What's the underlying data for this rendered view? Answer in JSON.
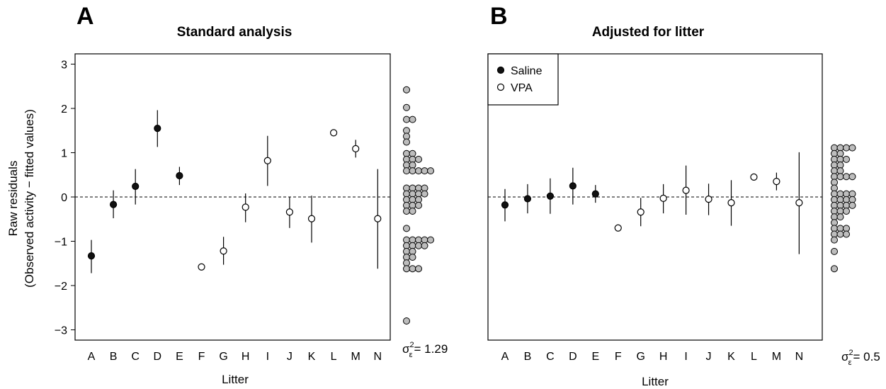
{
  "chart_data": [
    {
      "type": "scatter",
      "panel": "A",
      "title": "Standard analysis",
      "xlabel": "Litter",
      "ylabel_line1": "Raw residuals",
      "ylabel_line2": "(Observed activity − fitted values)",
      "categories": [
        "A",
        "B",
        "C",
        "D",
        "E",
        "F",
        "G",
        "H",
        "I",
        "J",
        "K",
        "L",
        "M",
        "N"
      ],
      "ylim": [
        -3.2,
        3.0
      ],
      "yticks": [
        -3,
        -2,
        -1,
        0,
        1,
        2,
        3
      ],
      "ytick_labels": [
        "−3",
        "−2",
        "−1",
        "0",
        "1",
        "2",
        "3"
      ],
      "reference_line": 0,
      "series": [
        {
          "name": "Saline",
          "fill": "#111111",
          "points": [
            {
              "x": "A",
              "y": -1.33,
              "lo": -1.72,
              "hi": -0.97
            },
            {
              "x": "B",
              "y": -0.17,
              "lo": -0.48,
              "hi": 0.15
            },
            {
              "x": "C",
              "y": 0.24,
              "lo": -0.17,
              "hi": 0.63
            },
            {
              "x": "D",
              "y": 1.55,
              "lo": 1.13,
              "hi": 1.96
            },
            {
              "x": "E",
              "y": 0.48,
              "lo": 0.27,
              "hi": 0.68
            }
          ]
        },
        {
          "name": "VPA",
          "fill": "#ffffff",
          "points": [
            {
              "x": "F",
              "y": -1.58,
              "lo": -1.58,
              "hi": -1.58
            },
            {
              "x": "G",
              "y": -1.22,
              "lo": -1.53,
              "hi": -0.9
            },
            {
              "x": "H",
              "y": -0.23,
              "lo": -0.57,
              "hi": 0.08
            },
            {
              "x": "I",
              "y": 0.82,
              "lo": 0.25,
              "hi": 1.38
            },
            {
              "x": "J",
              "y": -0.34,
              "lo": -0.7,
              "hi": 0.0
            },
            {
              "x": "K",
              "y": -0.49,
              "lo": -1.03,
              "hi": 0.03
            },
            {
              "x": "L",
              "y": 1.45,
              "lo": 1.45,
              "hi": 1.45
            },
            {
              "x": "M",
              "y": 1.09,
              "lo": 0.89,
              "hi": 1.29
            },
            {
              "x": "N",
              "y": -0.49,
              "lo": -1.62,
              "hi": 0.63
            }
          ]
        }
      ],
      "dotplot_counts_by_level": [
        {
          "y": 2.42,
          "n": 1
        },
        {
          "y": 2.02,
          "n": 1
        },
        {
          "y": 1.75,
          "n": 2
        },
        {
          "y": 1.5,
          "n": 1
        },
        {
          "y": 1.37,
          "n": 1
        },
        {
          "y": 1.24,
          "n": 1
        },
        {
          "y": 0.98,
          "n": 2
        },
        {
          "y": 0.85,
          "n": 3
        },
        {
          "y": 0.72,
          "n": 2
        },
        {
          "y": 0.59,
          "n": 5
        },
        {
          "y": 0.2,
          "n": 4
        },
        {
          "y": 0.07,
          "n": 4
        },
        {
          "y": -0.06,
          "n": 3
        },
        {
          "y": -0.19,
          "n": 3
        },
        {
          "y": -0.32,
          "n": 2
        },
        {
          "y": -0.71,
          "n": 1
        },
        {
          "y": -0.97,
          "n": 5
        },
        {
          "y": -1.1,
          "n": 4
        },
        {
          "y": -1.23,
          "n": 2
        },
        {
          "y": -1.36,
          "n": 2
        },
        {
          "y": -1.49,
          "n": 1
        },
        {
          "y": -1.62,
          "n": 3
        },
        {
          "y": -2.8,
          "n": 1
        }
      ],
      "sigma_value": "= 1.29"
    },
    {
      "type": "scatter",
      "panel": "B",
      "title": "Adjusted for litter",
      "xlabel": "Litter",
      "categories": [
        "A",
        "B",
        "C",
        "D",
        "E",
        "F",
        "G",
        "H",
        "I",
        "J",
        "K",
        "L",
        "M",
        "N"
      ],
      "ylim": [
        -3.2,
        3.0
      ],
      "reference_line": 0,
      "legend": {
        "position": "top-left",
        "entries": [
          {
            "label": "Saline",
            "fill": "#111111"
          },
          {
            "label": "VPA",
            "fill": "#ffffff"
          }
        ]
      },
      "series": [
        {
          "name": "Saline",
          "fill": "#111111",
          "points": [
            {
              "x": "A",
              "y": -0.18,
              "lo": -0.55,
              "hi": 0.18
            },
            {
              "x": "B",
              "y": -0.04,
              "lo": -0.37,
              "hi": 0.29
            },
            {
              "x": "C",
              "y": 0.02,
              "lo": -0.38,
              "hi": 0.42
            },
            {
              "x": "D",
              "y": 0.25,
              "lo": -0.17,
              "hi": 0.66
            },
            {
              "x": "E",
              "y": 0.07,
              "lo": -0.13,
              "hi": 0.27
            }
          ]
        },
        {
          "name": "VPA",
          "fill": "#ffffff",
          "points": [
            {
              "x": "F",
              "y": -0.7,
              "lo": -0.7,
              "hi": -0.7
            },
            {
              "x": "G",
              "y": -0.34,
              "lo": -0.66,
              "hi": -0.02
            },
            {
              "x": "H",
              "y": -0.03,
              "lo": -0.37,
              "hi": 0.29
            },
            {
              "x": "I",
              "y": 0.15,
              "lo": -0.4,
              "hi": 0.71
            },
            {
              "x": "J",
              "y": -0.05,
              "lo": -0.41,
              "hi": 0.3
            },
            {
              "x": "K",
              "y": -0.13,
              "lo": -0.65,
              "hi": 0.38
            },
            {
              "x": "L",
              "y": 0.45,
              "lo": 0.45,
              "hi": 0.45
            },
            {
              "x": "M",
              "y": 0.35,
              "lo": 0.15,
              "hi": 0.55
            },
            {
              "x": "N",
              "y": -0.13,
              "lo": -1.29,
              "hi": 1.01
            }
          ]
        }
      ],
      "dotplot_counts_by_level": [
        {
          "y": 1.11,
          "n": 4
        },
        {
          "y": 0.98,
          "n": 2
        },
        {
          "y": 0.85,
          "n": 3
        },
        {
          "y": 0.72,
          "n": 2
        },
        {
          "y": 0.59,
          "n": 2
        },
        {
          "y": 0.46,
          "n": 4
        },
        {
          "y": 0.33,
          "n": 1
        },
        {
          "y": 0.2,
          "n": 1
        },
        {
          "y": 0.07,
          "n": 4
        },
        {
          "y": -0.06,
          "n": 4
        },
        {
          "y": -0.19,
          "n": 4
        },
        {
          "y": -0.32,
          "n": 3
        },
        {
          "y": -0.45,
          "n": 2
        },
        {
          "y": -0.58,
          "n": 1
        },
        {
          "y": -0.71,
          "n": 3
        },
        {
          "y": -0.84,
          "n": 3
        },
        {
          "y": -0.97,
          "n": 1
        },
        {
          "y": -1.23,
          "n": 1
        },
        {
          "y": -1.62,
          "n": 1
        }
      ],
      "sigma_value": "= 0.5"
    }
  ],
  "colors": {
    "saline": "#111111",
    "vpa": "#ffffff",
    "dotplot_fill": "#bdbdbd",
    "stroke": "#000000"
  }
}
